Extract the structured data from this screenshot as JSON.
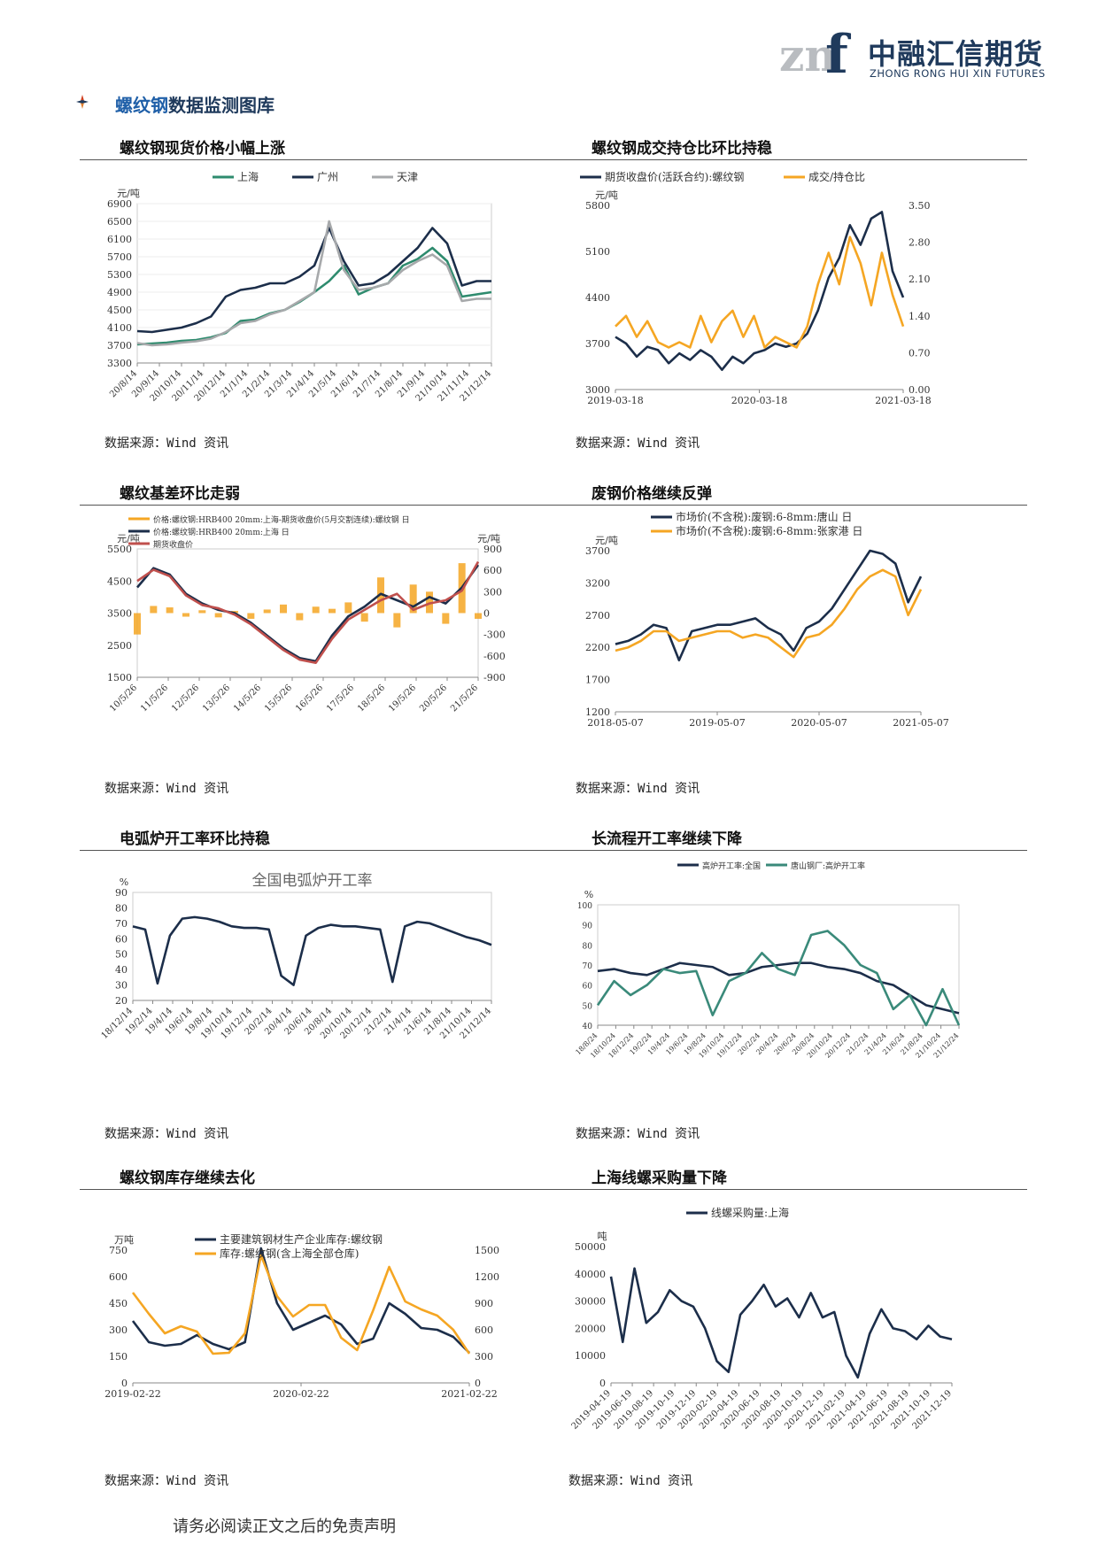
{
  "header": {
    "logo_mark": "znf",
    "company_cn": "中融汇信期货",
    "company_en": "ZHONG RONG HUI XIN FUTURES"
  },
  "section": {
    "title_highlight": "螺纹钢",
    "title_rest": "数据监测图库"
  },
  "figures": [
    {
      "title": "螺纹钢现货价格小幅上涨",
      "source": "数据来源：Wind 资讯"
    },
    {
      "title": "螺纹钢成交持仓比环比持稳",
      "source": "数据来源：Wind 资讯"
    },
    {
      "title": "螺纹基差环比走弱",
      "source": "数据来源：Wind 资讯"
    },
    {
      "title": "废钢价格继续反弹",
      "source": "数据来源：Wind 资讯"
    },
    {
      "title": "电弧炉开工率环比持稳",
      "source": "数据来源：Wind 资讯"
    },
    {
      "title": "长流程开工率继续下降",
      "source": "数据来源：Wind 资讯"
    },
    {
      "title": "螺纹钢库存继续去化",
      "source": "数据来源：Wind 资讯"
    },
    {
      "title": "上海线螺采购量下降",
      "source": "数据来源：Wind 资讯"
    }
  ],
  "footer": "请务必阅读正文之后的免责声明",
  "chart_data": [
    {
      "type": "line",
      "title": "",
      "ylabel": "元/吨",
      "ylim": [
        3300,
        6900
      ],
      "yticks": [
        3300,
        3700,
        4100,
        4500,
        4900,
        5300,
        5700,
        6100,
        6500,
        6900
      ],
      "xticks": [
        "20/8/14",
        "20/9/14",
        "20/10/14",
        "20/11/14",
        "20/12/14",
        "21/1/14",
        "21/2/14",
        "21/3/14",
        "21/4/14",
        "21/5/14",
        "21/6/14",
        "21/7/14",
        "21/8/14",
        "21/9/14",
        "21/10/14",
        "21/11/14",
        "21/12/14"
      ],
      "legend_position": "top",
      "series": [
        {
          "name": "上海",
          "color": "#2e8b6e",
          "values": [
            3720,
            3740,
            3760,
            3800,
            3820,
            3880,
            3980,
            4250,
            4280,
            4420,
            4500,
            4680,
            4900,
            5150,
            5500,
            4850,
            5000,
            5100,
            5500,
            5650,
            5900,
            5600,
            4800,
            4850,
            4900
          ]
        },
        {
          "name": "广州",
          "color": "#1c2e4a",
          "values": [
            4020,
            4000,
            4050,
            4100,
            4200,
            4350,
            4800,
            4950,
            5000,
            5100,
            5100,
            5250,
            5500,
            6350,
            5600,
            5050,
            5100,
            5300,
            5600,
            5900,
            6350,
            6000,
            5050,
            5150,
            5150
          ]
        },
        {
          "name": "天津",
          "color": "#a7a9ab",
          "values": [
            3750,
            3700,
            3720,
            3760,
            3790,
            3850,
            4000,
            4200,
            4250,
            4400,
            4500,
            4700,
            4900,
            6500,
            5400,
            4950,
            5000,
            5100,
            5400,
            5600,
            5750,
            5500,
            4700,
            4750,
            4750
          ]
        }
      ]
    },
    {
      "type": "line",
      "title": "",
      "ylabel": "元/吨",
      "ylim": [
        3000,
        5800
      ],
      "yticks": [
        3000,
        3700,
        4400,
        5100,
        5800
      ],
      "y2lim": [
        0,
        3.5
      ],
      "y2ticks": [
        "0.00",
        "0.70",
        "1.40",
        "2.10",
        "2.80",
        "3.50"
      ],
      "xticks": [
        "2019-03-18",
        "2020-03-18",
        "2021-03-18"
      ],
      "legend_position": "top",
      "series": [
        {
          "name": "期货收盘价(活跃合约):螺纹钢",
          "color": "#1c2e4a",
          "values": [
            3800,
            3700,
            3500,
            3650,
            3600,
            3400,
            3550,
            3450,
            3600,
            3500,
            3300,
            3500,
            3400,
            3550,
            3600,
            3700,
            3650,
            3700,
            3850,
            4200,
            4700,
            5000,
            5500,
            5200,
            5600,
            5700,
            4800,
            4400
          ]
        },
        {
          "name": "成交/持仓比",
          "color": "#f5a623",
          "axis": "right",
          "values": [
            1.2,
            1.4,
            1.0,
            1.3,
            0.9,
            0.8,
            0.9,
            0.8,
            1.4,
            0.9,
            1.3,
            1.5,
            1.0,
            1.4,
            0.8,
            1.0,
            0.9,
            0.8,
            1.2,
            2.0,
            2.6,
            2.0,
            2.9,
            2.4,
            1.6,
            2.6,
            1.8,
            1.2
          ]
        }
      ]
    },
    {
      "type": "line",
      "title": "",
      "ylabel": "元/吨",
      "ylim": [
        1500,
        5500
      ],
      "yticks": [
        1500,
        2500,
        3500,
        4500,
        5500
      ],
      "y2label": "元/吨",
      "y2lim": [
        -900,
        900
      ],
      "y2ticks": [
        -900,
        -600,
        -300,
        0,
        300,
        600,
        900
      ],
      "xticks": [
        "10/5/26",
        "11/5/26",
        "12/5/26",
        "13/5/26",
        "14/5/26",
        "15/5/26",
        "16/5/26",
        "17/5/26",
        "18/5/26",
        "19/5/26",
        "20/5/26",
        "21/5/26"
      ],
      "legend_position": "top-left",
      "series": [
        {
          "name": "价格:螺纹钢:HRB400 20mm:上海-期货收盘价(5月交割连续):螺纹钢 日",
          "color": "#f5a623",
          "axis": "right",
          "values": [
            -300,
            100,
            80,
            -50,
            40,
            -60,
            30,
            -80,
            50,
            120,
            -100,
            90,
            60,
            150,
            -120,
            500,
            -200,
            400,
            300,
            -150,
            700,
            -80
          ]
        },
        {
          "name": "价格:螺纹钢:HRB400 20mm:上海 日",
          "color": "#1c2e4a",
          "values": [
            4300,
            4900,
            4700,
            4100,
            3800,
            3600,
            3500,
            3200,
            2800,
            2400,
            2100,
            2000,
            2800,
            3400,
            3700,
            4100,
            3900,
            3700,
            4000,
            3800,
            4300,
            5000
          ]
        },
        {
          "name": "期货收盘价",
          "color": "#c0504d",
          "values": [
            4500,
            4850,
            4650,
            4050,
            3750,
            3650,
            3450,
            3150,
            2750,
            2350,
            2050,
            1950,
            2700,
            3300,
            3600,
            3900,
            4100,
            3600,
            3800,
            3900,
            4200,
            5100
          ]
        }
      ]
    },
    {
      "type": "line",
      "title": "",
      "ylabel": "元/吨",
      "ylim": [
        1200,
        3700
      ],
      "yticks": [
        1200,
        1700,
        2200,
        2700,
        3200,
        3700
      ],
      "xticks": [
        "2018-05-07",
        "2019-05-07",
        "2020-05-07",
        "2021-05-07"
      ],
      "legend_position": "top-left",
      "series": [
        {
          "name": "市场价(不含税):废钢:6-8mm:唐山 日",
          "color": "#1c2e4a",
          "values": [
            2250,
            2300,
            2400,
            2550,
            2500,
            2000,
            2450,
            2500,
            2550,
            2550,
            2600,
            2650,
            2500,
            2400,
            2150,
            2500,
            2600,
            2800,
            3100,
            3400,
            3700,
            3650,
            3500,
            2900,
            3300
          ]
        },
        {
          "name": "市场价(不含税):废钢:6-8mm:张家港 日",
          "color": "#f5a623",
          "values": [
            2150,
            2200,
            2300,
            2450,
            2450,
            2300,
            2350,
            2400,
            2450,
            2450,
            2350,
            2400,
            2350,
            2200,
            2050,
            2350,
            2400,
            2550,
            2800,
            3100,
            3300,
            3400,
            3300,
            2700,
            3100
          ]
        }
      ]
    },
    {
      "type": "line",
      "title": "全国电弧炉开工率",
      "ylabel": "%",
      "ylim": [
        20,
        90
      ],
      "yticks": [
        20,
        30,
        40,
        50,
        60,
        70,
        80,
        90
      ],
      "xticks": [
        "18/12/14",
        "19/2/14",
        "19/4/14",
        "19/6/14",
        "19/8/14",
        "19/10/14",
        "19/12/14",
        "20/2/14",
        "20/4/14",
        "20/6/14",
        "20/8/14",
        "20/10/14",
        "20/12/14",
        "21/2/14",
        "21/4/14",
        "21/6/14",
        "21/8/14",
        "21/10/14",
        "21/12/14"
      ],
      "series": [
        {
          "name": "全国电弧炉开工率",
          "color": "#1c2e4a",
          "values": [
            68,
            66,
            31,
            62,
            73,
            74,
            73,
            71,
            68,
            67,
            67,
            66,
            36,
            30,
            62,
            67,
            69,
            68,
            68,
            67,
            66,
            32,
            68,
            71,
            70,
            67,
            64,
            61,
            59,
            56
          ]
        }
      ]
    },
    {
      "type": "line",
      "title": "",
      "ylabel": "%",
      "ylim": [
        40,
        100
      ],
      "yticks": [
        40,
        50,
        60,
        70,
        80,
        90,
        100
      ],
      "xticks": [
        "18/8/24",
        "18/10/24",
        "18/12/24",
        "19/2/24",
        "19/4/24",
        "19/6/24",
        "19/8/24",
        "19/10/24",
        "19/12/24",
        "20/2/24",
        "20/4/24",
        "20/6/24",
        "20/8/24",
        "20/10/24",
        "20/12/24",
        "21/2/24",
        "21/4/24",
        "21/6/24",
        "21/8/24",
        "21/10/24",
        "21/12/24"
      ],
      "legend_position": "top",
      "series": [
        {
          "name": "高炉开工率:全国",
          "color": "#1c2e4a",
          "values": [
            67,
            68,
            66,
            65,
            68,
            71,
            70,
            69,
            65,
            66,
            69,
            70,
            71,
            71,
            69,
            68,
            66,
            62,
            60,
            55,
            50,
            48,
            46
          ]
        },
        {
          "name": "唐山钢厂:高炉开工率",
          "color": "#3a8a7a",
          "values": [
            50,
            62,
            55,
            60,
            68,
            66,
            67,
            45,
            62,
            66,
            76,
            68,
            65,
            85,
            87,
            80,
            70,
            66,
            48,
            55,
            40,
            58,
            40
          ]
        }
      ]
    },
    {
      "type": "line",
      "title": "",
      "ylabel": "万吨",
      "ylim": [
        0,
        750
      ],
      "yticks": [
        0,
        150,
        300,
        450,
        600,
        750
      ],
      "y2lim": [
        0,
        1500
      ],
      "y2ticks": [
        0,
        300,
        600,
        900,
        1200,
        1500
      ],
      "xticks": [
        "2019-02-22",
        "2020-02-22",
        "2021-02-22"
      ],
      "legend_position": "top",
      "series": [
        {
          "name": "主要建筑钢材生产企业库存:螺纹钢",
          "color": "#1c2e4a",
          "values": [
            350,
            230,
            210,
            220,
            270,
            220,
            190,
            230,
            760,
            450,
            300,
            340,
            380,
            330,
            220,
            250,
            450,
            390,
            310,
            300,
            260,
            170
          ]
        },
        {
          "name": "库存:螺纹钢(含上海全部仓库)",
          "color": "#f5a623",
          "axis": "right",
          "values": [
            1020,
            780,
            560,
            640,
            580,
            330,
            340,
            560,
            1440,
            980,
            750,
            880,
            880,
            510,
            370,
            820,
            1310,
            920,
            830,
            760,
            600,
            330
          ]
        }
      ]
    },
    {
      "type": "line",
      "title": "",
      "ylabel": "吨",
      "ylim": [
        0,
        50000
      ],
      "yticks": [
        0,
        10000,
        20000,
        30000,
        40000,
        50000
      ],
      "xticks": [
        "2019-04-19",
        "2019-06-19",
        "2019-08-19",
        "2019-10-19",
        "2019-12-19",
        "2020-02-19",
        "2020-04-19",
        "2020-06-19",
        "2020-08-19",
        "2020-10-19",
        "2020-12-19",
        "2021-02-19",
        "2021-04-19",
        "2021-06-19",
        "2021-08-19",
        "2021-10-19",
        "2021-12-19"
      ],
      "legend_position": "top",
      "series": [
        {
          "name": "线螺采购量:上海",
          "color": "#1c2e4a",
          "values": [
            39000,
            15000,
            42000,
            22000,
            26000,
            34000,
            30000,
            28000,
            20000,
            8000,
            4000,
            25000,
            30000,
            36000,
            28000,
            31000,
            24000,
            33000,
            24000,
            26000,
            10000,
            2000,
            18000,
            27000,
            20000,
            19000,
            16000,
            21000,
            17000,
            16000
          ]
        }
      ]
    }
  ]
}
